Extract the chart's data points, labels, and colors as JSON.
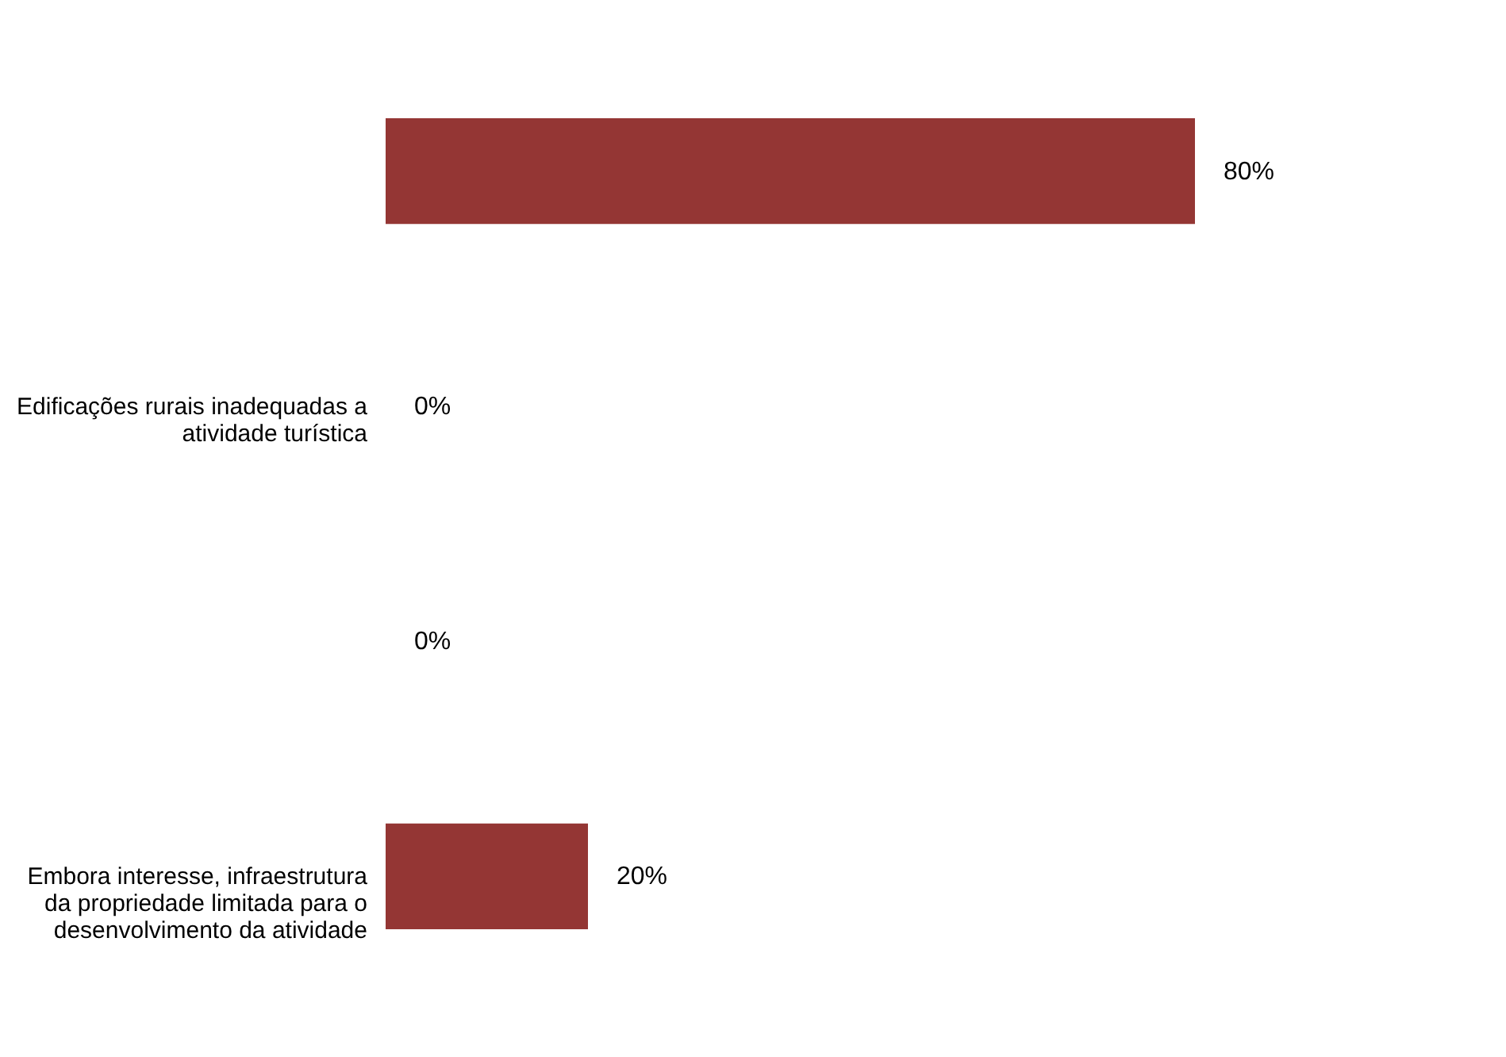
{
  "chart_data": {
    "type": "bar",
    "orientation": "horizontal",
    "categories": [
      null,
      "Edificações rurais inadequadas a atividade turística",
      null,
      "Embora interesse, infraestrutura da propriedade limitada para o desenvolvimento da atividade"
    ],
    "values": [
      80,
      0,
      0,
      20
    ],
    "colors": [
      "#943634",
      "#7f6262",
      "#5a1414",
      "#943634"
    ],
    "value_labels": [
      "80%",
      "0%",
      "0%",
      "20%"
    ]
  }
}
